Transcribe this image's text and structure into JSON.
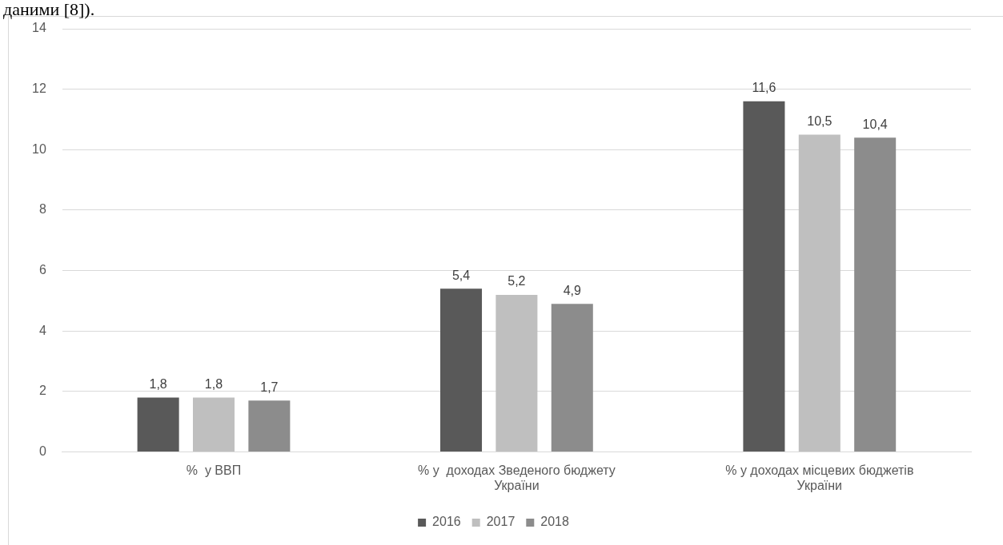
{
  "chart_data": {
    "type": "bar",
    "categories": [
      "%  у ВВП",
      "% у  доходах Зведеного бюджету України",
      "% у доходах місцевих бюджетів України"
    ],
    "series": [
      {
        "name": "2016",
        "color": "#595959",
        "values": [
          1.8,
          5.4,
          11.6
        ],
        "value_labels": [
          "1,8",
          "5,4",
          "11,6"
        ]
      },
      {
        "name": "2017",
        "color": "#bfbfbf",
        "values": [
          1.8,
          5.2,
          10.5
        ],
        "value_labels": [
          "1,8",
          "5,2",
          "10,5"
        ]
      },
      {
        "name": "2018",
        "color": "#8c8c8c",
        "values": [
          1.7,
          4.9,
          10.4
        ],
        "value_labels": [
          "1,7",
          "4,9",
          "10,4"
        ]
      }
    ],
    "ylim": [
      0,
      14
    ],
    "yticks": [
      0,
      2,
      4,
      6,
      8,
      10,
      12,
      14
    ],
    "grid": "y",
    "legend": "bottom",
    "annotations": [
      "даними [8])."
    ]
  }
}
